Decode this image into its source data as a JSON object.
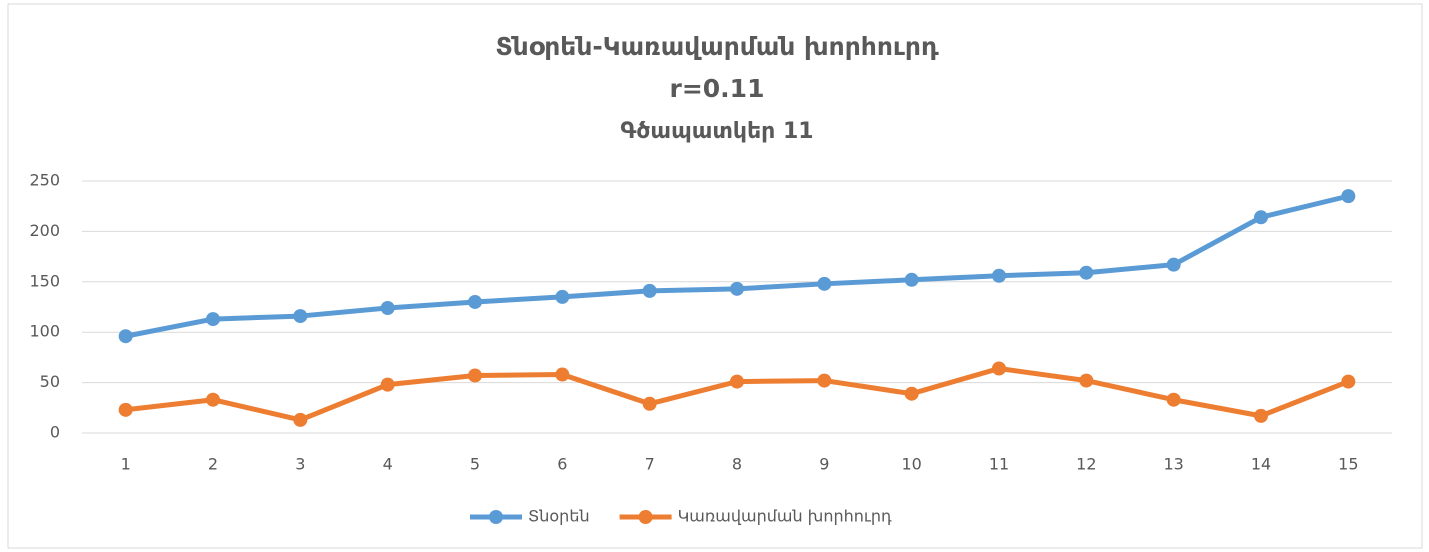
{
  "chart_data": {
    "type": "line",
    "title": "Տնօրեն-Կառավարման խորհուրդ",
    "subtitle": "r=0.11",
    "caption": "Գծապատկեր 11",
    "categories": [
      "1",
      "2",
      "3",
      "4",
      "5",
      "6",
      "7",
      "8",
      "9",
      "10",
      "11",
      "12",
      "13",
      "14",
      "15"
    ],
    "series": [
      {
        "name": "Տնօրեն",
        "color": "#5b9bd5",
        "values": [
          96,
          113,
          116,
          124,
          130,
          135,
          141,
          143,
          148,
          152,
          156,
          159,
          167,
          214,
          235
        ]
      },
      {
        "name": "Կառավարման խորհուրդ",
        "color": "#ed7d31",
        "values": [
          23,
          33,
          13,
          48,
          57,
          58,
          29,
          51,
          52,
          39,
          64,
          52,
          33,
          17,
          51
        ]
      }
    ],
    "ylim": [
      0,
      250
    ],
    "yticks": [
      0,
      50,
      100,
      150,
      200,
      250
    ],
    "grid": true,
    "legend": "bottom"
  }
}
